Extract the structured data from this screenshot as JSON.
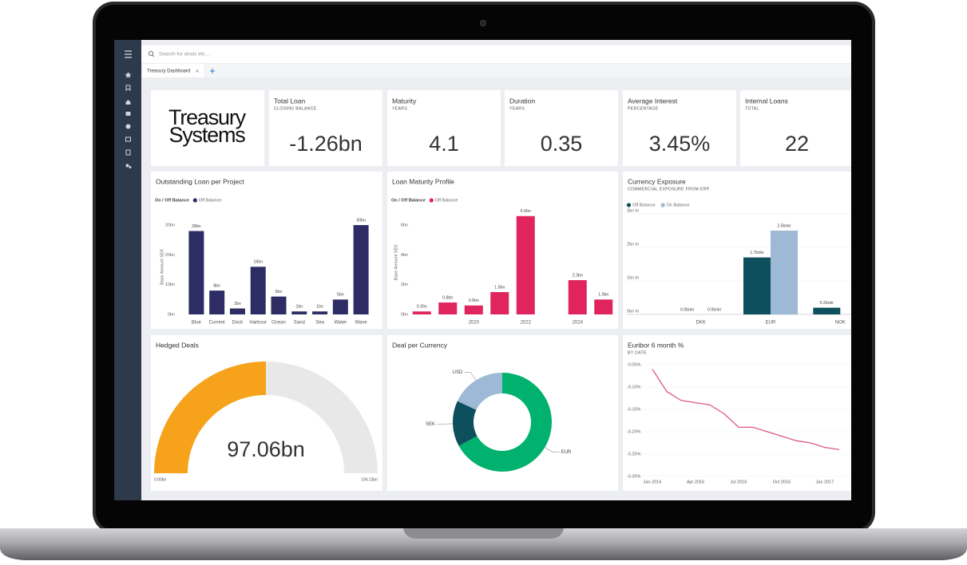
{
  "search": {
    "placeholder": "Search for deals etc..."
  },
  "tabs": [
    "Treasury Dashboard"
  ],
  "logo": {
    "lines": [
      "Treasury",
      "Systems"
    ]
  },
  "kpis": [
    {
      "title": "Total Loan",
      "subtitle": "CLOSING BALANCE",
      "value": "-1.26bn"
    },
    {
      "title": "Maturity",
      "subtitle": "YEARS",
      "value": 4.1
    },
    {
      "title": "Duration",
      "subtitle": "YEARS",
      "value": 0.35
    },
    {
      "title": "Average Interest",
      "subtitle": "PERCENTAGE",
      "value": "3.45%"
    },
    {
      "title": "Internal Loans",
      "subtitle": "TOTAL",
      "value": 22
    }
  ],
  "chart_data": [
    {
      "type": "bar",
      "title": "Outstanding Loan per Project",
      "legend_title": "On / Off Balance",
      "ylabel": "Base Amount SEK",
      "categories": [
        "Blue",
        "Current",
        "Dock",
        "Harbour",
        "Ocean",
        "Sand",
        "Sea",
        "Water",
        "Wave"
      ],
      "series": [
        {
          "name": "Off Balance",
          "color": "#2d2c64",
          "values": [
            28,
            8,
            2,
            16,
            6,
            1,
            1,
            5,
            30
          ],
          "value_labels": [
            "28bn",
            "8bn",
            "2bn",
            "16bn",
            "6bn",
            "1bn",
            "1bn",
            "5bn",
            "30bn"
          ]
        }
      ],
      "ylim": [
        0,
        32
      ],
      "yticks": [
        {
          "value": 0,
          "label": "0bn"
        },
        {
          "value": 10,
          "label": "10bn"
        },
        {
          "value": 20,
          "label": "20bn"
        },
        {
          "value": 30,
          "label": "30bn"
        }
      ],
      "grid": false
    },
    {
      "type": "bar",
      "title": "Loan Maturity Profile",
      "legend_title": "On / Off Balance",
      "ylabel": "Base Amount SEK",
      "categories": [
        null,
        null,
        "2020",
        null,
        "2022",
        null,
        "2024",
        null
      ],
      "series": [
        {
          "name": "Off Balance",
          "color": "#e0245e",
          "values": [
            0.2,
            0.8,
            0.6,
            1.5,
            6.6,
            null,
            2.3,
            1.0
          ],
          "value_labels": [
            "0.2bn",
            "0.8bn",
            "0.6bn",
            "1.5bn",
            "6.6bn",
            null,
            "2.3bn",
            "1.0bn"
          ]
        }
      ],
      "ylim": [
        0,
        7
      ],
      "yticks": [
        {
          "value": 0,
          "label": "0bn"
        },
        {
          "value": 2,
          "label": "2bn"
        },
        {
          "value": 4,
          "label": "4bn"
        },
        {
          "value": 6,
          "label": "6bn"
        }
      ],
      "grid": false
    },
    {
      "type": "bar",
      "title": "Currency Exposure",
      "subtitle": "COMMERCIAL EXPOSURE FROM ERP",
      "categories": [
        "DKK",
        "EUR",
        "NOK"
      ],
      "series": [
        {
          "name": "Off Balance",
          "color": "#0d4f5c",
          "values": [
            0.0,
            1.7,
            0.2
          ],
          "value_labels": [
            "0.0bnkr",
            "1.7bnkr",
            "0.2bnkr"
          ]
        },
        {
          "name": "On Balance",
          "color": "#9db9d5",
          "values": [
            0.0,
            2.5,
            null
          ],
          "value_labels": [
            "0.0bnkr",
            "2.5bnkr",
            null
          ]
        }
      ],
      "ylim": [
        0,
        3
      ],
      "yticks": [
        {
          "value": 0,
          "label": "0bn kr"
        },
        {
          "value": 1,
          "label": "1bn kr"
        },
        {
          "value": 2,
          "label": "2bn kr"
        },
        {
          "value": 3,
          "label": "3bn kr"
        }
      ],
      "grid": true
    },
    {
      "type": "gauge",
      "title": "Hedged Deals",
      "value": 97.06,
      "value_label": "97.06bn",
      "range": [
        0,
        194.13
      ],
      "range_labels": [
        "0.00bn",
        "194.13bn"
      ],
      "color": "#f7a21b",
      "track_color": "#e8e8e8"
    },
    {
      "type": "donut",
      "title": "Deal per Currency",
      "categories": [
        "EUR",
        "SEK",
        "USD"
      ],
      "values": [
        67,
        15,
        18
      ],
      "colors": [
        "#00b26e",
        "#0d4f5c",
        "#9db9d5"
      ]
    },
    {
      "type": "line",
      "title": "Euribor 6 month %",
      "subtitle": "BY DATE",
      "categories": [
        "Jan 2016",
        null,
        null,
        "Apr 2016",
        null,
        null,
        "Jul 2016",
        null,
        null,
        "Oct 2016",
        null,
        null,
        "Jan 2017",
        null
      ],
      "series": [
        {
          "name": "Euribor 6 month",
          "color": "#e2568c",
          "values": [
            -0.06,
            -0.11,
            -0.13,
            -0.135,
            -0.14,
            -0.16,
            -0.19,
            -0.19,
            -0.2,
            -0.21,
            -0.22,
            -0.225,
            -0.235,
            -0.24
          ]
        }
      ],
      "ylim": [
        -0.3,
        -0.05
      ],
      "yticks": [
        {
          "value": -0.3,
          "label": "-0.30%"
        },
        {
          "value": -0.25,
          "label": "-0.25%"
        },
        {
          "value": -0.2,
          "label": "-0.20%"
        },
        {
          "value": -0.15,
          "label": "-0.15%"
        },
        {
          "value": -0.1,
          "label": "-0.10%"
        },
        {
          "value": -0.05,
          "label": "-0.05%"
        }
      ],
      "grid": true
    }
  ]
}
